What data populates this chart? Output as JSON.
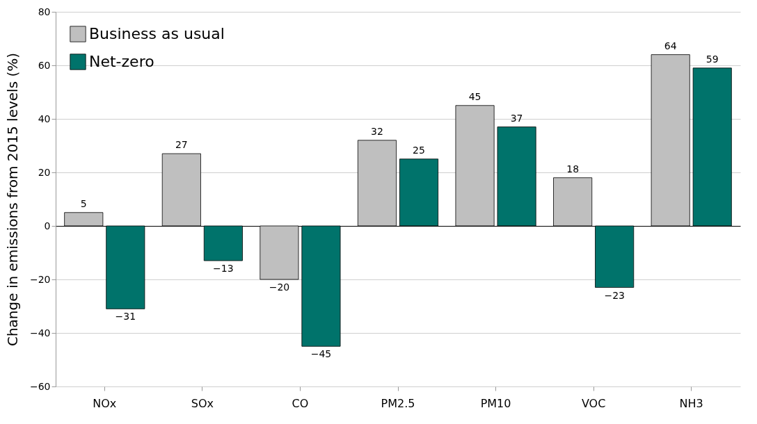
{
  "chart_data": {
    "type": "bar",
    "ylabel": "Change in emissions from 2015 levels (%)",
    "categories": [
      "NOx",
      "SOx",
      "CO",
      "PM2.5",
      "PM10",
      "VOC",
      "NH3"
    ],
    "series": [
      {
        "name": "Business as usual",
        "color": "#bfbfbf",
        "values": [
          5,
          27,
          -20,
          32,
          45,
          18,
          64
        ]
      },
      {
        "name": "Net-zero",
        "color": "#00736b",
        "values": [
          -31,
          -13,
          -45,
          25,
          37,
          -23,
          59
        ]
      }
    ],
    "ylim": [
      -60,
      80
    ],
    "yticks": [
      -60,
      -40,
      -20,
      0,
      20,
      40,
      60,
      80
    ],
    "grid": "y",
    "legend": "top left",
    "data_labels": true
  }
}
